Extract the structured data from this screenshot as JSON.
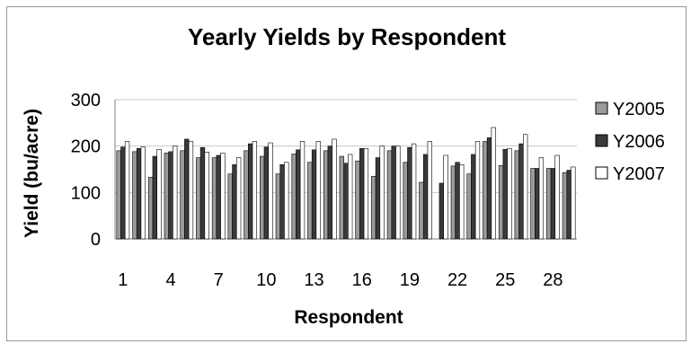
{
  "chart_data": {
    "type": "bar",
    "title": "Yearly Yields by Respondent",
    "xlabel": "Respondent",
    "ylabel": "Yield (bu/acre)",
    "ylim": [
      0,
      300
    ],
    "yticks": [
      "0",
      "100",
      "200",
      "300"
    ],
    "categories": [
      "1",
      "2",
      "3",
      "4",
      "5",
      "6",
      "7",
      "8",
      "9",
      "10",
      "11",
      "12",
      "13",
      "14",
      "15",
      "16",
      "17",
      "18",
      "19",
      "20",
      "21",
      "22",
      "23",
      "24",
      "25",
      "26",
      "27",
      "28",
      "29"
    ],
    "xtick_labels": [
      "1",
      "",
      "",
      "4",
      "",
      "",
      "7",
      "",
      "",
      "10",
      "",
      "",
      "13",
      "",
      "",
      "16",
      "",
      "",
      "19",
      "",
      "",
      "22",
      "",
      "",
      "25",
      "",
      "",
      "28",
      ""
    ],
    "grid": "horizontal",
    "legend_position": "right",
    "series": [
      {
        "name": "Y2005",
        "color": "#9a9a9a",
        "values": [
          190,
          188,
          133,
          185,
          190,
          175,
          175,
          140,
          190,
          178,
          140,
          183,
          165,
          190,
          178,
          168,
          135,
          190,
          165,
          122,
          0,
          157,
          140,
          210,
          158,
          190,
          152,
          152,
          143
        ]
      },
      {
        "name": "Y2006",
        "color": "#3a3a3a",
        "values": [
          198,
          195,
          178,
          188,
          215,
          197,
          180,
          160,
          205,
          198,
          160,
          192,
          192,
          200,
          163,
          195,
          175,
          200,
          197,
          182,
          120,
          165,
          182,
          218,
          193,
          205,
          152,
          152,
          148
        ]
      },
      {
        "name": "Y2007",
        "color": "#ffffff",
        "values": [
          210,
          198,
          193,
          200,
          210,
          187,
          185,
          175,
          210,
          207,
          165,
          210,
          210,
          215,
          182,
          195,
          200,
          200,
          205,
          210,
          180,
          160,
          210,
          240,
          195,
          225,
          175,
          180,
          155
        ]
      }
    ]
  }
}
